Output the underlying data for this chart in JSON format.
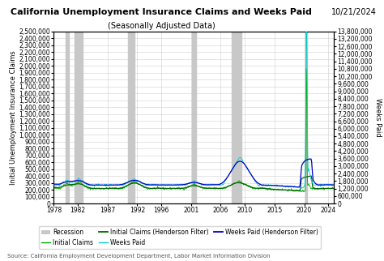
{
  "title": "California Unemployment Insurance Claims and Weeks Paid",
  "subtitle": "(Seasonally Adjusted Data)",
  "date_label": "10/21/2024",
  "ylabel_left": "Initial Unemployment Insurance Claims",
  "ylabel_right": "Weeks Paid",
  "source": "Source: California Employment Development Department, Labor Market Information Division",
  "xlim": [
    1978,
    2025
  ],
  "ylim_left": [
    0,
    2500000
  ],
  "ylim_right": [
    0,
    13800000
  ],
  "yticks_left": [
    0,
    100000,
    200000,
    300000,
    400000,
    500000,
    600000,
    700000,
    800000,
    900000,
    1000000,
    1100000,
    1200000,
    1300000,
    1400000,
    1500000,
    1600000,
    1700000,
    1800000,
    1900000,
    2000000,
    2100000,
    2200000,
    2300000,
    2400000,
    2500000
  ],
  "yticks_right": [
    0,
    600000,
    1200000,
    1800000,
    2400000,
    3000000,
    3600000,
    4200000,
    4800000,
    5400000,
    6000000,
    6600000,
    7200000,
    7800000,
    8400000,
    9000000,
    9600000,
    10200000,
    10800000,
    11400000,
    12000000,
    12600000,
    13200000,
    13800000
  ],
  "xticks": [
    1978,
    1982,
    1987,
    1992,
    1996,
    2001,
    2006,
    2010,
    2015,
    2020,
    2024
  ],
  "recession_bands": [
    [
      1980.0,
      1980.5
    ],
    [
      1981.5,
      1982.8
    ],
    [
      1990.5,
      1991.5
    ],
    [
      2001.2,
      2001.9
    ],
    [
      2007.9,
      2009.5
    ],
    [
      2020.2,
      2020.5
    ]
  ],
  "recession_color": "#c8c8c8",
  "initial_claims_color": "#00aa00",
  "initial_claims_hf_color": "#006400",
  "weeks_paid_color": "#00cccc",
  "weeks_paid_hf_color": "#0000cc",
  "background_color": "#ffffff",
  "plot_bg_color": "#ffffff",
  "grid_color": "#d0d0d0",
  "title_fontsize": 8,
  "subtitle_fontsize": 7,
  "axis_label_fontsize": 6,
  "tick_fontsize": 5.5,
  "legend_fontsize": 5.5,
  "source_fontsize": 5
}
